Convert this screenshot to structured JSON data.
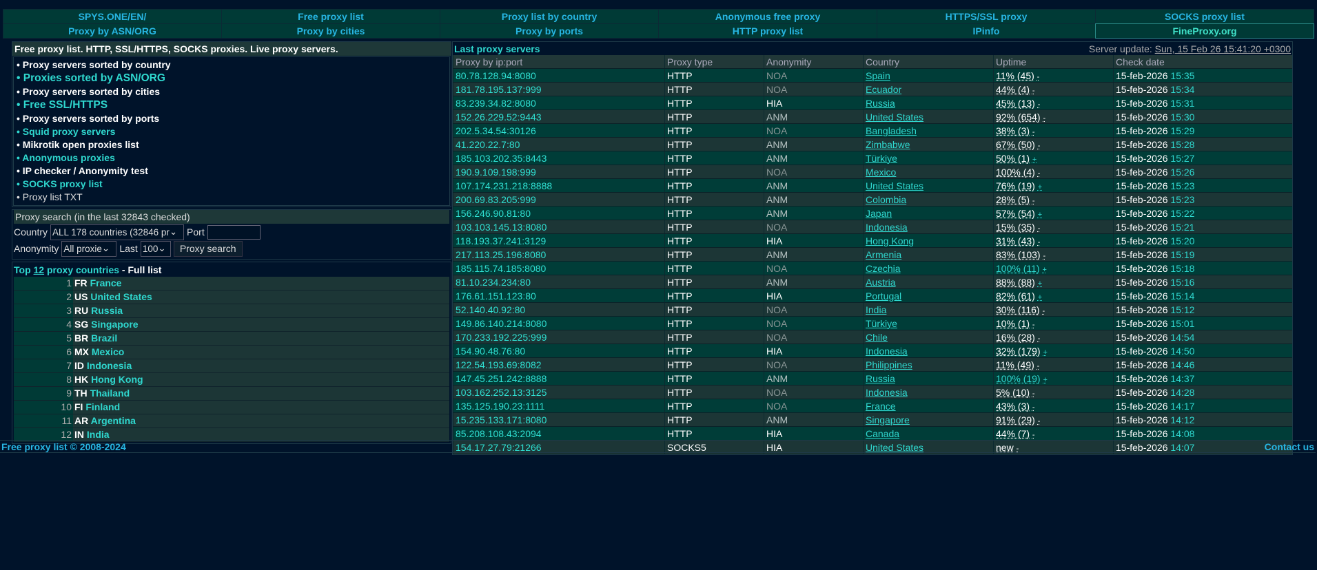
{
  "nav": {
    "row1": [
      "SPYS.ONE/EN/",
      "Free proxy list",
      "Proxy list by country",
      "Anonymous free proxy",
      "HTTPS/SSL proxy",
      "SOCKS proxy list"
    ],
    "row2": [
      "Proxy by ASN/ORG",
      "Proxy by cities",
      "Proxy by ports",
      "HTTP proxy list",
      "IPinfo",
      "FineProxy.org"
    ]
  },
  "left": {
    "title": "Free proxy list. HTTP, SSL/HTTPS, SOCKS proxies. Live proxy servers.",
    "menu": [
      {
        "label": "• Proxy servers sorted by country",
        "style": "white"
      },
      {
        "label": "• Proxies sorted by ASN/ORG",
        "style": "teal big"
      },
      {
        "label": "• Proxy servers sorted by cities",
        "style": "white"
      },
      {
        "label": "• Free SSL/HTTPS",
        "style": "teal big"
      },
      {
        "label": "• Proxy servers sorted by ports",
        "style": "white"
      },
      {
        "label": "• Squid proxy servers",
        "style": "teal"
      },
      {
        "label": "• Mikrotik open proxies list",
        "style": "white"
      },
      {
        "label": "• Anonymous proxies",
        "style": "teal"
      },
      {
        "label": "• IP checker / Anonymity test",
        "style": "white"
      },
      {
        "label": "• SOCKS proxy list",
        "style": "teal"
      },
      {
        "label": "• Proxy list TXT",
        "style": "plain"
      }
    ],
    "search": {
      "title": "Proxy search (in the last 32843 checked)",
      "country_label": "Country",
      "country_value": "ALL 178 countries (32846 pr",
      "port_label": "Port",
      "port_value": "",
      "anonymity_label": "Anonymity",
      "anonymity_value": "All proxie",
      "last_label": "Last",
      "last_value": "100",
      "button": "Proxy search"
    },
    "top": {
      "prefix": "Top ",
      "count": "12",
      "suffix": " proxy countries",
      "full": " - Full list",
      "countries": [
        [
          "1",
          "FR",
          "France"
        ],
        [
          "2",
          "US",
          "United States"
        ],
        [
          "3",
          "RU",
          "Russia"
        ],
        [
          "4",
          "SG",
          "Singapore"
        ],
        [
          "5",
          "BR",
          "Brazil"
        ],
        [
          "6",
          "MX",
          "Mexico"
        ],
        [
          "7",
          "ID",
          "Indonesia"
        ],
        [
          "8",
          "HK",
          "Hong Kong"
        ],
        [
          "9",
          "TH",
          "Thailand"
        ],
        [
          "10",
          "FI",
          "Finland"
        ],
        [
          "11",
          "AR",
          "Argentina"
        ],
        [
          "12",
          "IN",
          "India"
        ]
      ]
    }
  },
  "right": {
    "title": "Last proxy servers",
    "server_update_label": "Server update: ",
    "server_update": "Sun, 15 Feb 26 15:41:20 +0300",
    "columns": [
      "Proxy by ip:port",
      "Proxy type",
      "Anonymity",
      "Country",
      "Uptime",
      "Check date"
    ],
    "rows": [
      [
        "80.78.128.94:8080",
        "HTTP",
        "NOA",
        "Spain",
        "11% (45)",
        "-",
        "15-feb-2026",
        "15:35",
        false
      ],
      [
        "181.78.195.137:999",
        "HTTP",
        "NOA",
        "Ecuador",
        "44% (4)",
        "-",
        "15-feb-2026",
        "15:34",
        false
      ],
      [
        "83.239.34.82:8080",
        "HTTP",
        "HIA",
        "Russia",
        "45% (13)",
        "-",
        "15-feb-2026",
        "15:31",
        false
      ],
      [
        "152.26.229.52:9443",
        "HTTP",
        "ANM",
        "United States",
        "92% (654)",
        "-",
        "15-feb-2026",
        "15:30",
        false
      ],
      [
        "202.5.34.54:30126",
        "HTTP",
        "NOA",
        "Bangladesh",
        "38% (3)",
        "-",
        "15-feb-2026",
        "15:29",
        false
      ],
      [
        "41.220.22.7:80",
        "HTTP",
        "ANM",
        "Zimbabwe",
        "67% (50)",
        "-",
        "15-feb-2026",
        "15:28",
        false
      ],
      [
        "185.103.202.35:8443",
        "HTTP",
        "ANM",
        "Türkiye",
        "50% (1)",
        "+",
        "15-feb-2026",
        "15:27",
        false
      ],
      [
        "190.9.109.198:999",
        "HTTP",
        "NOA",
        "Mexico",
        "100% (4)",
        "-",
        "15-feb-2026",
        "15:26",
        false
      ],
      [
        "107.174.231.218:8888",
        "HTTP",
        "ANM",
        "United States",
        "76% (19)",
        "+",
        "15-feb-2026",
        "15:23",
        false
      ],
      [
        "200.69.83.205:999",
        "HTTP",
        "ANM",
        "Colombia",
        "28% (5)",
        "-",
        "15-feb-2026",
        "15:23",
        false
      ],
      [
        "156.246.90.81:80",
        "HTTP",
        "ANM",
        "Japan",
        "57% (54)",
        "+",
        "15-feb-2026",
        "15:22",
        false
      ],
      [
        "103.103.145.13:8080",
        "HTTP",
        "NOA",
        "Indonesia",
        "15% (35)",
        "-",
        "15-feb-2026",
        "15:21",
        false
      ],
      [
        "118.193.37.241:3129",
        "HTTP",
        "HIA",
        "Hong Kong",
        "31% (43)",
        "-",
        "15-feb-2026",
        "15:20",
        false
      ],
      [
        "217.113.25.196:8080",
        "HTTP",
        "ANM",
        "Armenia",
        "83% (103)",
        "-",
        "15-feb-2026",
        "15:19",
        false
      ],
      [
        "185.115.74.185:8080",
        "HTTP",
        "NOA",
        "Czechia",
        "100% (11)",
        "+",
        "15-feb-2026",
        "15:18",
        true
      ],
      [
        "81.10.234.234:80",
        "HTTP",
        "ANM",
        "Austria",
        "88% (88)",
        "+",
        "15-feb-2026",
        "15:16",
        false
      ],
      [
        "176.61.151.123:80",
        "HTTP",
        "HIA",
        "Portugal",
        "82% (61)",
        "+",
        "15-feb-2026",
        "15:14",
        false
      ],
      [
        "52.140.40.92:80",
        "HTTP",
        "NOA",
        "India",
        "30% (116)",
        "-",
        "15-feb-2026",
        "15:12",
        false
      ],
      [
        "149.86.140.214:8080",
        "HTTP",
        "NOA",
        "Türkiye",
        "10% (1)",
        "-",
        "15-feb-2026",
        "15:01",
        false
      ],
      [
        "170.233.192.225:999",
        "HTTP",
        "NOA",
        "Chile",
        "16% (28)",
        "-",
        "15-feb-2026",
        "14:54",
        false
      ],
      [
        "154.90.48.76:80",
        "HTTP",
        "HIA",
        "Indonesia",
        "32% (179)",
        "+",
        "15-feb-2026",
        "14:50",
        false
      ],
      [
        "122.54.193.69:8082",
        "HTTP",
        "NOA",
        "Philippines",
        "11% (49)",
        "-",
        "15-feb-2026",
        "14:46",
        false
      ],
      [
        "147.45.251.242:8888",
        "HTTP",
        "ANM",
        "Russia",
        "100% (19)",
        "+",
        "15-feb-2026",
        "14:37",
        true
      ],
      [
        "103.162.252.13:3125",
        "HTTP",
        "NOA",
        "Indonesia",
        "5% (10)",
        "-",
        "15-feb-2026",
        "14:28",
        false
      ],
      [
        "135.125.190.23:1111",
        "HTTP",
        "NOA",
        "France",
        "43% (3)",
        "-",
        "15-feb-2026",
        "14:17",
        false
      ],
      [
        "15.235.133.171:8080",
        "HTTP",
        "ANM",
        "Singapore",
        "91% (29)",
        "-",
        "15-feb-2026",
        "14:12",
        false
      ],
      [
        "85.208.108.43:2094",
        "HTTP",
        "HIA",
        "Canada",
        "44% (7)",
        "-",
        "15-feb-2026",
        "14:08",
        false
      ],
      [
        "154.17.27.79:21266",
        "SOCKS5",
        "HIA",
        "United States",
        "new",
        "-",
        "15-feb-2026",
        "14:07",
        false
      ]
    ]
  },
  "footer": {
    "copyright": "Free proxy list © 2008-2024",
    "contact": "Contact us"
  }
}
